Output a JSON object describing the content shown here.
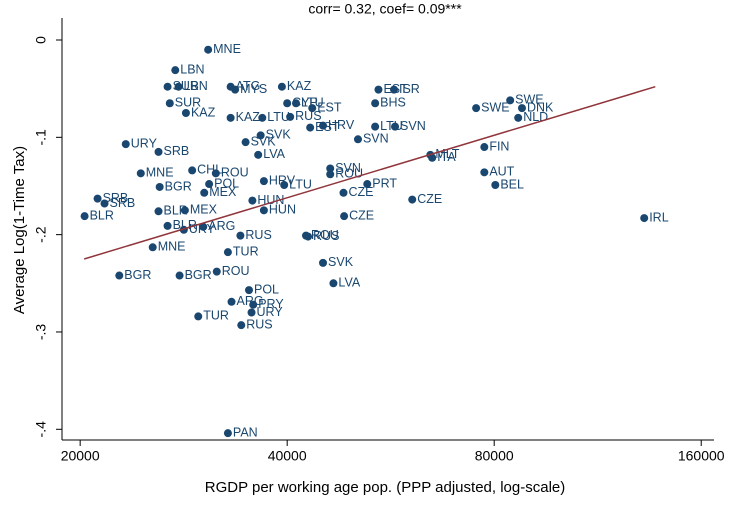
{
  "chart_data": {
    "type": "scatter",
    "title": "corr= 0.32, coef= 0.09***",
    "x_label": "RGDP per working age pop. (PPP adjusted, log-scale)",
    "y_label": "Average Log(1-Time Tax)",
    "x_log": true,
    "xlim": [
      18820,
      167000
    ],
    "ylim": [
      -0.411,
      0.0226
    ],
    "xticks": [
      20000,
      40000,
      80000,
      160000
    ],
    "yticks": [
      0,
      {
        "value": -0.1,
        "label": "-.1"
      },
      {
        "value": -0.2,
        "label": "-.2"
      },
      {
        "value": -0.3,
        "label": "-.3"
      },
      {
        "value": -0.4,
        "label": "-.4"
      }
    ],
    "series": [
      {
        "color": "#1a476f",
        "labels": [
          "MNE",
          "LBN",
          "SUR",
          "LBN",
          "ATG",
          "MYS",
          "KAZ",
          "BHS",
          "EST",
          "ISR",
          "SWE",
          "SWE",
          "DNK",
          "NLD",
          "SUR",
          "KAZ",
          "KAZ",
          "LTU",
          "CYP",
          "LTU",
          "EST",
          "RUS",
          "EST",
          "HRV",
          "LTU",
          "SVN",
          "SVN",
          "URY",
          "SRB",
          "SVK",
          "SVK",
          "LVA",
          "CHL",
          "MLT",
          "ITA",
          "FIN",
          "AUT",
          "BEL",
          "IRL",
          "SVN",
          "ROU",
          "PRT",
          "CZE",
          "CZE",
          "CZE",
          "LTU",
          "HRV",
          "MNE",
          "ROU",
          "BGR",
          "POL",
          "MEX",
          "HUN",
          "HUN",
          "SRB",
          "SRB",
          "BLR",
          "BLR",
          "MEX",
          "URY",
          "ARG",
          "BLR",
          "RUS",
          "RUS",
          "ROU",
          "MNE",
          "TUR",
          "BGR",
          "BGR",
          "ROU",
          "SVK",
          "LVA",
          "POL",
          "ARG",
          "PRY",
          "URY",
          "TUR",
          "RUS",
          "PAN"
        ],
        "x": [
          30700,
          27500,
          26800,
          27800,
          33100,
          33600,
          39300,
          53700,
          54300,
          57200,
          84400,
          75300,
          87800,
          86700,
          27000,
          28500,
          33100,
          36800,
          40000,
          41200,
          43500,
          40400,
          43200,
          45100,
          53700,
          57400,
          50700,
          23300,
          26000,
          36600,
          34800,
          36300,
          29100,
          64600,
          65000,
          77400,
          77400,
          80300,
          132200,
          46200,
          46200,
          52300,
          48300,
          60800,
          48400,
          39600,
          37000,
          24500,
          31500,
          26100,
          30800,
          30300,
          35600,
          37000,
          21200,
          21700,
          20300,
          26000,
          28400,
          28300,
          30200,
          26800,
          34200,
          42900,
          42600,
          25500,
          32800,
          22800,
          27900,
          31600,
          45100,
          46700,
          35200,
          33200,
          35700,
          35500,
          29700,
          34300,
          32800
        ],
        "values": [
          -0.01,
          -0.031,
          -0.048,
          -0.048,
          -0.048,
          -0.051,
          -0.048,
          -0.065,
          -0.051,
          -0.051,
          -0.062,
          -0.07,
          -0.07,
          -0.08,
          -0.065,
          -0.075,
          -0.08,
          -0.08,
          -0.065,
          -0.065,
          -0.07,
          -0.079,
          -0.09,
          -0.088,
          -0.089,
          -0.089,
          -0.102,
          -0.107,
          -0.115,
          -0.098,
          -0.105,
          -0.118,
          -0.134,
          -0.118,
          -0.121,
          -0.11,
          -0.136,
          -0.149,
          -0.183,
          -0.132,
          -0.138,
          -0.148,
          -0.157,
          -0.164,
          -0.181,
          -0.149,
          -0.145,
          -0.137,
          -0.137,
          -0.151,
          -0.148,
          -0.157,
          -0.165,
          -0.175,
          -0.163,
          -0.168,
          -0.181,
          -0.176,
          -0.175,
          -0.195,
          -0.192,
          -0.191,
          -0.201,
          -0.202,
          -0.201,
          -0.213,
          -0.218,
          -0.242,
          -0.242,
          -0.238,
          -0.229,
          -0.25,
          -0.257,
          -0.269,
          -0.272,
          -0.28,
          -0.284,
          -0.293,
          -0.404
        ]
      }
    ],
    "fit_line": {
      "color": "#90353b",
      "x": [
        20270,
        137200
      ],
      "y": [
        -0.225,
        -0.048
      ]
    }
  }
}
